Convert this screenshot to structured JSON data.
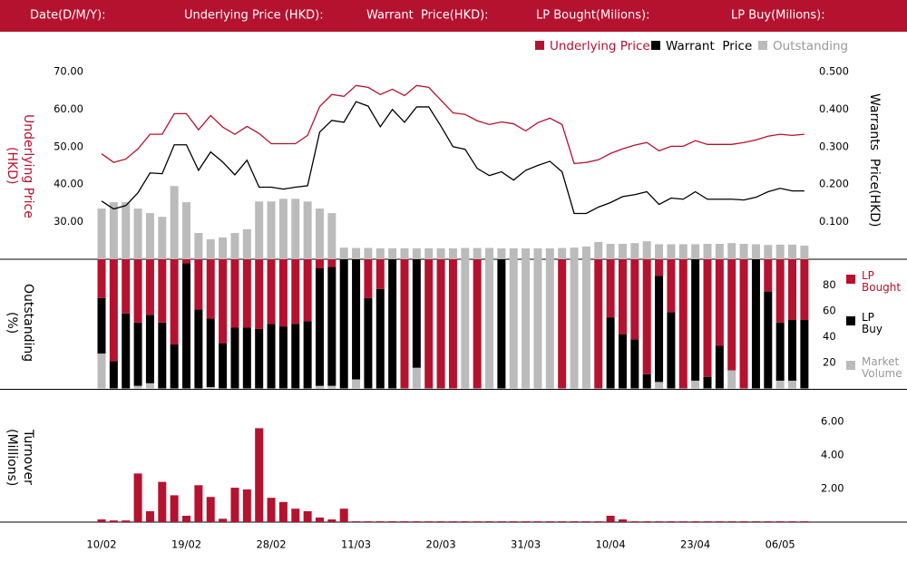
{
  "header": {
    "fields": [
      "Date(D/M/Y):",
      "Underlying Price (HKD):",
      "Warrant  Price(HKD):",
      "LP Bought(Milions):",
      "LP Buy(Milions):"
    ]
  },
  "chart_data": [
    {
      "type": "combo",
      "ylabel": "Underlying Price (HKD)",
      "y2label": "Warrants  Price(HKD)",
      "ylim": [
        20,
        70
      ],
      "yticks": [
        {
          "value": 30,
          "label": "30.00"
        },
        {
          "value": 40,
          "label": "40.00"
        },
        {
          "value": 50,
          "label": "50.00"
        },
        {
          "value": 60,
          "label": "60.00"
        },
        {
          "value": 70,
          "label": "70.00"
        }
      ],
      "y2lim": [
        0,
        0.5
      ],
      "y2ticks": [
        {
          "value": 0.1,
          "label": "0.100"
        },
        {
          "value": 0.2,
          "label": "0.200"
        },
        {
          "value": 0.3,
          "label": "0.300"
        },
        {
          "value": 0.4,
          "label": "0.400"
        },
        {
          "value": 0.5,
          "label": "0.500"
        }
      ],
      "series": [
        {
          "name": "Underlying Price",
          "type": "line",
          "color": "#b5122f",
          "values": [
            48.1,
            45.8,
            46.7,
            49.4,
            53.3,
            53.3,
            58.8,
            58.8,
            54.5,
            58.3,
            55.2,
            53.3,
            55.4,
            53.5,
            50.8,
            50.8,
            50.8,
            53.0,
            60.7,
            63.9,
            63.4,
            66.3,
            65.8,
            63.9,
            65.3,
            63.6,
            66.3,
            65.8,
            62.4,
            59.0,
            58.6,
            56.9,
            55.9,
            56.6,
            56.1,
            54.2,
            56.4,
            57.6,
            55.9,
            45.5,
            45.8,
            46.5,
            48.2,
            49.4,
            50.4,
            51.1,
            48.9,
            50.1,
            50.1,
            51.6,
            50.6,
            50.6,
            50.6,
            51.1,
            51.8,
            52.8,
            53.3,
            53.0,
            53.3
          ]
        },
        {
          "name": "Warrant  Price",
          "type": "line",
          "axis": "y2",
          "color": "#000000",
          "values": [
            0.155,
            0.134,
            0.143,
            0.177,
            0.23,
            0.228,
            0.305,
            0.305,
            0.237,
            0.286,
            0.259,
            0.225,
            0.264,
            0.192,
            0.192,
            0.187,
            0.192,
            0.196,
            0.339,
            0.37,
            0.365,
            0.42,
            0.408,
            0.353,
            0.399,
            0.365,
            0.406,
            0.406,
            0.355,
            0.3,
            0.293,
            0.242,
            0.223,
            0.233,
            0.211,
            0.237,
            0.25,
            0.261,
            0.233,
            0.122,
            0.122,
            0.139,
            0.151,
            0.167,
            0.172,
            0.18,
            0.146,
            0.163,
            0.16,
            0.18,
            0.16,
            0.16,
            0.16,
            0.158,
            0.165,
            0.18,
            0.189,
            0.182,
            0.182
          ]
        },
        {
          "name": "Outstanding",
          "type": "bar",
          "color": "#bbbbbb",
          "values": [
            33.5,
            35.2,
            35.2,
            33.5,
            32.3,
            31.3,
            39.5,
            35.2,
            27.0,
            25.3,
            25.8,
            27.0,
            28.0,
            35.4,
            35.4,
            36.1,
            36.1,
            35.4,
            33.5,
            32.3,
            23.1,
            23.0,
            23.0,
            22.9,
            22.9,
            22.9,
            22.9,
            22.9,
            22.9,
            22.9,
            23.0,
            23.0,
            23.0,
            22.9,
            22.9,
            22.9,
            22.9,
            22.9,
            23.0,
            23.1,
            23.4,
            24.6,
            24.1,
            24.1,
            24.3,
            24.8,
            24.0,
            24.0,
            24.0,
            24.0,
            24.1,
            24.1,
            24.3,
            24.1,
            24.0,
            23.8,
            23.9,
            23.9,
            23.6
          ]
        }
      ]
    },
    {
      "type": "stacked-bar",
      "ylabel": "Outstanding (%)",
      "ylim": [
        0,
        100
      ],
      "yticks": [
        20,
        40,
        60,
        80
      ],
      "series": [
        {
          "name": "LP Bought",
          "color": "#b5122f",
          "values": [
            30,
            79,
            42,
            49,
            43,
            49,
            66,
            3,
            39,
            46,
            65,
            53,
            53,
            54,
            50,
            52,
            50,
            48,
            7,
            6,
            0,
            0,
            30,
            23,
            0,
            100,
            0,
            100,
            100,
            100,
            0,
            100,
            0,
            0,
            0,
            0,
            0,
            0,
            100,
            0,
            0,
            100,
            45,
            58,
            62,
            89,
            13,
            41,
            100,
            0,
            91,
            67,
            86,
            100,
            0,
            25,
            49,
            47,
            47
          ]
        },
        {
          "name": "LP Buy",
          "color": "#000000",
          "values": [
            43,
            21,
            58,
            49,
            53,
            51,
            34,
            97,
            61,
            53,
            35,
            47,
            47,
            46,
            50,
            48,
            50,
            52,
            91,
            92,
            100,
            93,
            70,
            77,
            100,
            0,
            84,
            0,
            0,
            0,
            0,
            0,
            0,
            100,
            0,
            0,
            0,
            0,
            0,
            0,
            0,
            0,
            55,
            42,
            38,
            11,
            82,
            59,
            0,
            94,
            9,
            33,
            0,
            0,
            100,
            75,
            45,
            47,
            53
          ]
        },
        {
          "name": "Market Volume",
          "color": "#bbbbbb",
          "values": [
            27,
            0,
            0,
            2,
            4,
            0,
            0,
            0,
            0,
            1,
            0,
            0,
            0,
            0,
            0,
            0,
            0,
            0,
            2,
            2,
            0,
            7,
            0,
            0,
            0,
            0,
            16,
            0,
            0,
            0,
            100,
            0,
            100,
            0,
            100,
            100,
            100,
            100,
            0,
            100,
            100,
            0,
            0,
            0,
            0,
            0,
            5,
            0,
            0,
            6,
            0,
            0,
            14,
            0,
            0,
            0,
            6,
            6,
            0
          ]
        }
      ]
    },
    {
      "type": "bar",
      "ylabel": "Turnover (Millions)",
      "ylim": [
        0,
        6
      ],
      "yticks": [
        {
          "value": 2,
          "label": "2.00"
        },
        {
          "value": 4,
          "label": "4.00"
        },
        {
          "value": 6,
          "label": "6.00"
        }
      ],
      "color": "#b5122f",
      "categories": [
        "10/02",
        null,
        null,
        null,
        null,
        null,
        null,
        "19/02",
        null,
        null,
        null,
        null,
        null,
        null,
        "28/02",
        null,
        null,
        null,
        null,
        null,
        null,
        "11/03",
        null,
        null,
        null,
        null,
        null,
        null,
        "20/03",
        null,
        null,
        null,
        null,
        null,
        null,
        "31/03",
        null,
        null,
        null,
        null,
        null,
        null,
        "10/04",
        null,
        null,
        null,
        null,
        null,
        null,
        "23/04",
        null,
        null,
        null,
        null,
        null,
        null,
        "06/05",
        null,
        null
      ],
      "values": [
        0.16,
        0.1,
        0.1,
        2.9,
        0.65,
        2.4,
        1.6,
        0.38,
        2.2,
        1.5,
        0.2,
        2.05,
        1.95,
        5.6,
        1.45,
        1.2,
        0.8,
        0.65,
        0.27,
        0.16,
        0.8,
        0.05,
        0.05,
        0.05,
        0.05,
        0.05,
        0.05,
        0.05,
        0.05,
        0.05,
        0.05,
        0.05,
        0.05,
        0.05,
        0.05,
        0.05,
        0.05,
        0.05,
        0.05,
        0.05,
        0.05,
        0.05,
        0.38,
        0.16,
        0.05,
        0.05,
        0.05,
        0.05,
        0.05,
        0.05,
        0.05,
        0.05,
        0.05,
        0.05,
        0.05,
        0.05,
        0.05,
        0.05,
        0.05
      ]
    }
  ]
}
